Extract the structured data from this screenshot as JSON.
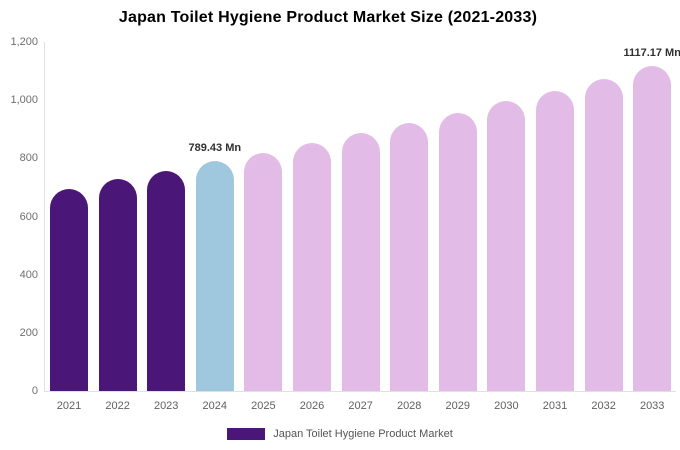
{
  "title": "Japan Toilet Hygiene Product Market Size (2021-2033)",
  "legend": {
    "label": "Japan Toilet Hygiene Product Market",
    "swatch_color": "#4A1678",
    "position": "bottom"
  },
  "chart_data": {
    "type": "bar",
    "title": "Japan Toilet Hygiene Product Market Size (2021-2033)",
    "unit": "Mn",
    "ylim": [
      0,
      1200
    ],
    "yticks": [
      0,
      200,
      400,
      600,
      800,
      1000,
      1200
    ],
    "ytick_labels": [
      "0",
      "200",
      "400",
      "600",
      "800",
      "1,000",
      "1,200"
    ],
    "grid": false,
    "legend_position": "bottom",
    "segment_colors": {
      "historical": "#4A1678",
      "base_year": "#9FC8DE",
      "forecast": "#E2BCE6"
    },
    "bars": [
      {
        "year": "2021",
        "value": 695,
        "segment": "historical"
      },
      {
        "year": "2022",
        "value": 728,
        "segment": "historical"
      },
      {
        "year": "2023",
        "value": 758,
        "segment": "historical"
      },
      {
        "year": "2024",
        "value": 789.43,
        "segment": "base_year",
        "label": "789.43 Mn"
      },
      {
        "year": "2025",
        "value": 820,
        "segment": "forecast"
      },
      {
        "year": "2026",
        "value": 853,
        "segment": "forecast"
      },
      {
        "year": "2027",
        "value": 886,
        "segment": "forecast"
      },
      {
        "year": "2028",
        "value": 921,
        "segment": "forecast"
      },
      {
        "year": "2029",
        "value": 957,
        "segment": "forecast"
      },
      {
        "year": "2030",
        "value": 997,
        "segment": "forecast"
      },
      {
        "year": "2031",
        "value": 1032,
        "segment": "forecast"
      },
      {
        "year": "2032",
        "value": 1072,
        "segment": "forecast"
      },
      {
        "year": "2033",
        "value": 1117.17,
        "segment": "forecast",
        "label": "1117.17 Mn"
      }
    ]
  }
}
